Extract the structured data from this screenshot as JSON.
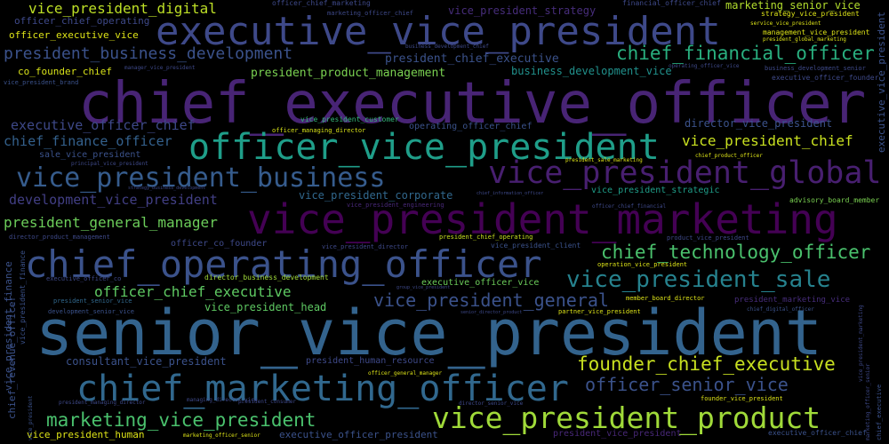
{
  "background": "#000000",
  "words": [
    {
      "text": "chief_executive_officer",
      "color": "#482475"
    },
    {
      "text": "senior_vice_president",
      "color": "#33638d"
    },
    {
      "text": "executive_vice_president",
      "color": "#3e4989"
    },
    {
      "text": "vice_president_marketing",
      "color": "#440154"
    },
    {
      "text": "officer_vice_president",
      "color": "#1f9e89"
    },
    {
      "text": "chief_operating_officer",
      "color": "#3b528b"
    },
    {
      "text": "chief_marketing_officer",
      "color": "#31688e"
    },
    {
      "text": "vice_president_product",
      "color": "#a0da39"
    },
    {
      "text": "vice_president_global",
      "color": "#481f70"
    },
    {
      "text": "vice_president_business",
      "color": "#365c8d"
    },
    {
      "text": "vice_president_sale",
      "color": "#26828e"
    },
    {
      "text": "president_business_development",
      "color": "#3b528b"
    },
    {
      "text": "chief_financial_officer",
      "color": "#29af7f"
    },
    {
      "text": "chief_technology_officer",
      "color": "#4ac16d"
    },
    {
      "text": "founder_chief_executive",
      "color": "#c8e020"
    },
    {
      "text": "vice_president_general",
      "color": "#3b528b"
    },
    {
      "text": "marketing_vice_president",
      "color": "#4ac16d"
    },
    {
      "text": "officer_senior_vice",
      "color": "#3b528b"
    },
    {
      "text": "officer_chief_executive",
      "color": "#5ec962"
    },
    {
      "text": "vice_president_chief",
      "color": "#c8e020"
    },
    {
      "text": "president_general_manager",
      "color": "#6ccd5a"
    },
    {
      "text": "executive_officer_chief",
      "color": "#3e4989"
    },
    {
      "text": "chief_finance_officer",
      "color": "#34618d"
    },
    {
      "text": "development_vice_president",
      "color": "#423f85"
    },
    {
      "text": "vice_president_digital",
      "color": "#bddf26"
    },
    {
      "text": "president_product_management",
      "color": "#7ad151"
    },
    {
      "text": "president_chief_executive",
      "color": "#3b528b"
    },
    {
      "text": "vice_president_strategy",
      "color": "#472d7b"
    },
    {
      "text": "marketing_senior_vice",
      "color": "#b2dd2d"
    },
    {
      "text": "business_development_vice",
      "color": "#21918c"
    },
    {
      "text": "director_vice_president",
      "color": "#3b528b"
    },
    {
      "text": "vice_president_head",
      "color": "#5ec962"
    },
    {
      "text": "consultant_vice_president",
      "color": "#3b528b"
    },
    {
      "text": "vice_president_corporate",
      "color": "#31688e"
    },
    {
      "text": "vice_president_human",
      "color": "#dde318"
    },
    {
      "text": "executive_officer_president",
      "color": "#3b528b"
    },
    {
      "text": "president_vice_president",
      "color": "#482878"
    },
    {
      "text": "co_founder_chief",
      "color": "#d8e219"
    },
    {
      "text": "officer_executive_vice",
      "color": "#dde318"
    },
    {
      "text": "officer_chief_operating",
      "color": "#3e4989"
    },
    {
      "text": "sale_vice_president",
      "color": "#3b528b"
    },
    {
      "text": "president_human_resource",
      "color": "#3e4989"
    },
    {
      "text": "operating_officer_chief",
      "color": "#3b528b"
    },
    {
      "text": "executive_officer_vice",
      "color": "#6ccd5a"
    },
    {
      "text": "officer_co_founder",
      "color": "#3e4989"
    },
    {
      "text": "director_business_development",
      "color": "#a0da39"
    },
    {
      "text": "vice_president_customer",
      "color": "#35b779"
    },
    {
      "text": "officer_managing_director",
      "color": "#d8e219"
    },
    {
      "text": "vice_president_strategic",
      "color": "#1f9e89"
    },
    {
      "text": "advisory_board_member",
      "color": "#7ad151"
    },
    {
      "text": "strategy_vice_president",
      "color": "#dde318"
    },
    {
      "text": "president_sale_marketing",
      "color": "#dde318"
    },
    {
      "text": "president_chief_operating",
      "color": "#c8e020"
    },
    {
      "text": "vice_president_engineering",
      "color": "#482878"
    },
    {
      "text": "vice_president_director",
      "color": "#3e4989"
    },
    {
      "text": "vice_president_client",
      "color": "#3b528b"
    },
    {
      "text": "product_vice_president",
      "color": "#3e4989"
    },
    {
      "text": "operation_vice_president",
      "color": "#dde318"
    },
    {
      "text": "chief_product_officer",
      "color": "#dde318"
    },
    {
      "text": "vice_president_finance",
      "color": "#3b528b"
    },
    {
      "text": "president_senior_vice",
      "color": "#31688e"
    },
    {
      "text": "development_senior_vice",
      "color": "#3b528b"
    },
    {
      "text": "executive_officer_co",
      "color": "#3e4989"
    },
    {
      "text": "member_board_director",
      "color": "#dde318"
    },
    {
      "text": "partner_vice_president",
      "color": "#dde318"
    },
    {
      "text": "president_marketing_vice",
      "color": "#472d7b"
    },
    {
      "text": "chief_digital_officer",
      "color": "#3b528b"
    },
    {
      "text": "officer_general_manager",
      "color": "#dde318"
    },
    {
      "text": "president_consumer",
      "color": "#3e4989"
    },
    {
      "text": "founder_vice_president",
      "color": "#dde318"
    },
    {
      "text": "director_senior_vice",
      "color": "#3e4989"
    },
    {
      "text": "senior_director_product",
      "color": "#3e4989"
    },
    {
      "text": "group_vice_president",
      "color": "#3e4989"
    },
    {
      "text": "vice_president_brand",
      "color": "#3b528b"
    },
    {
      "text": "manager_vice_president",
      "color": "#3e4989"
    },
    {
      "text": "principal_vice_president",
      "color": "#3e4989"
    },
    {
      "text": "strategy_business_development",
      "color": "#3e4989"
    },
    {
      "text": "chief_information_officer",
      "color": "#3e4989"
    },
    {
      "text": "officer_chief_financial",
      "color": "#3e4989"
    },
    {
      "text": "director_product_management",
      "color": "#3e4989"
    },
    {
      "text": "president_managing_director",
      "color": "#3e4989"
    },
    {
      "text": "managing_director_vice",
      "color": "#3e4989"
    },
    {
      "text": "officer_chief_marketing",
      "color": "#3e4989"
    },
    {
      "text": "marketing_officer_chief",
      "color": "#3e4989"
    },
    {
      "text": "financial_officer_chief",
      "color": "#3e4989"
    },
    {
      "text": "business_development_chief",
      "color": "#3e4989"
    },
    {
      "text": "operating_officer_vice",
      "color": "#3e4989"
    },
    {
      "text": "executive_officer_founder",
      "color": "#3e4989"
    },
    {
      "text": "business_development_senior",
      "color": "#3e4989"
    },
    {
      "text": "management_vice_president",
      "color": "#dde318"
    },
    {
      "text": "service_vice_president",
      "color": "#dde318"
    },
    {
      "text": "president_global_marketing",
      "color": "#dde318"
    },
    {
      "text": "marketing_officer_senior",
      "color": "#dde318"
    },
    {
      "text": "executive_officer_chief",
      "color": "#3b528b"
    },
    {
      "text": "executive_vice_president",
      "color": "#3b528b"
    },
    {
      "text": "chief_revenue_officer",
      "color": "#3b528b"
    },
    {
      "text": "vice_president_finance",
      "color": "#3b528b"
    },
    {
      "text": "vice_president",
      "color": "#3b528b"
    },
    {
      "text": "chief_executive",
      "color": "#3b528b"
    },
    {
      "text": "marketing_officer_senior",
      "color": "#3e4989"
    },
    {
      "text": "vice_president_marketing",
      "color": "#3e4989"
    }
  ]
}
